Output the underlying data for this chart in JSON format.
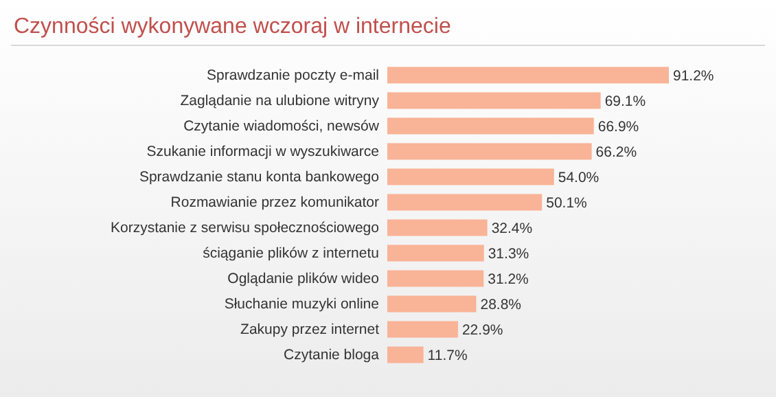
{
  "chart_data": {
    "type": "bar",
    "orientation": "horizontal",
    "title": "Czynności wykonywane wczoraj w internecie",
    "categories": [
      "Sprawdzanie poczty e-mail",
      "Zaglądanie na ulubione witryny",
      "Czytanie wiadomości, newsów",
      "Szukanie informacji w wyszukiwarce",
      "Sprawdzanie stanu konta bankowego",
      "Rozmawianie przez komunikator",
      "Korzystanie z serwisu społecznościowego",
      "ściąganie plików z internetu",
      "Oglądanie plików wideo",
      "Słuchanie muzyki online",
      "Zakupy przez internet",
      "Czytanie bloga"
    ],
    "values": [
      91.2,
      69.1,
      66.9,
      66.2,
      54.0,
      50.1,
      32.4,
      31.3,
      31.2,
      28.8,
      22.9,
      11.7
    ],
    "value_labels": [
      "91.2%",
      "69.1%",
      "66.9%",
      "66.2%",
      "54.0%",
      "50.1%",
      "32.4%",
      "31.3%",
      "31.2%",
      "28.8%",
      "22.9%",
      "11.7%"
    ],
    "color": "#f9b397"
  }
}
